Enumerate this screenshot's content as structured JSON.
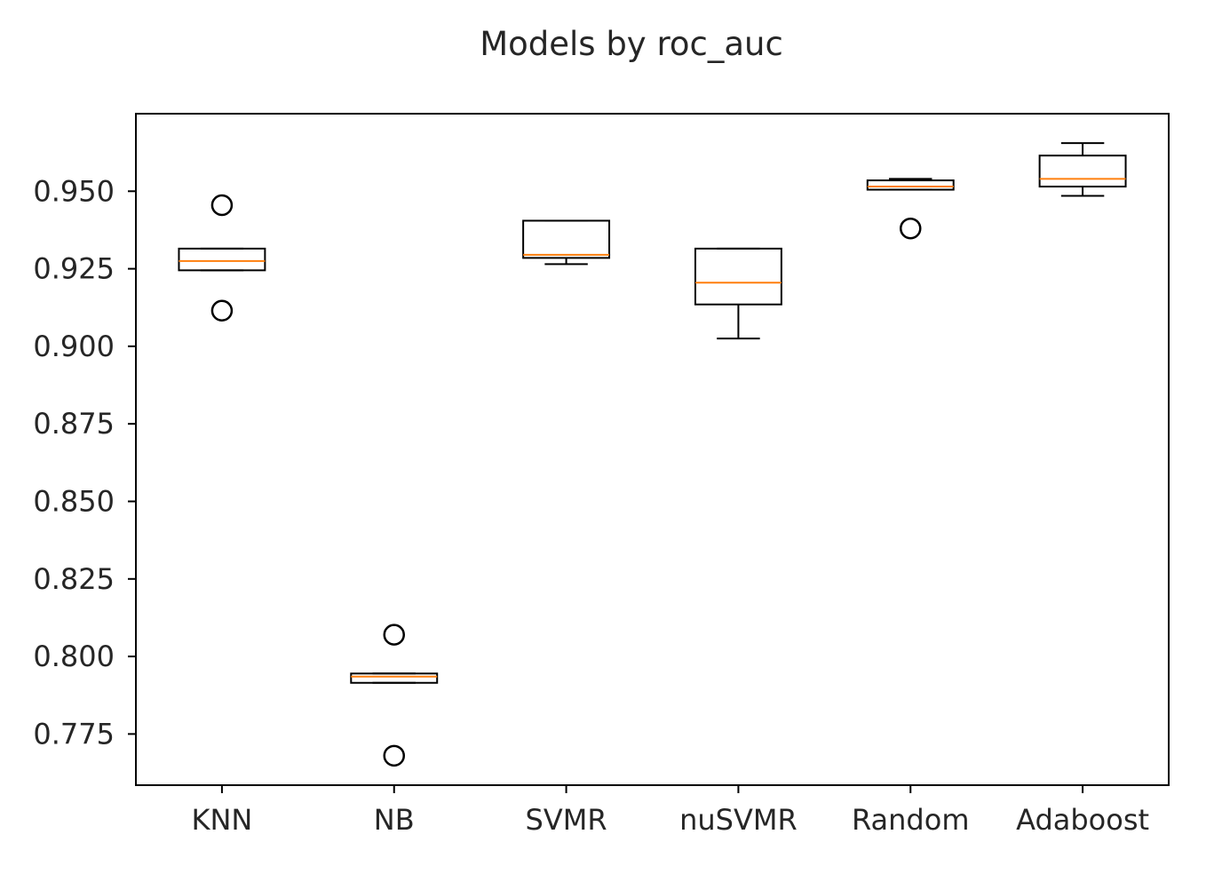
{
  "chart_data": {
    "type": "boxplot",
    "title": "Models by roc_auc",
    "xlabel": "",
    "ylabel": "",
    "ylim": [
      0.7585,
      0.975
    ],
    "yticks": [
      0.775,
      0.8,
      0.825,
      0.85,
      0.875,
      0.9,
      0.925,
      0.95
    ],
    "ytick_labels": [
      "0.775",
      "0.800",
      "0.825",
      "0.850",
      "0.875",
      "0.900",
      "0.925",
      "0.950"
    ],
    "categories": [
      "KNN",
      "NB",
      "SVMR",
      "nuSVMR",
      "Random",
      "Adaboost"
    ],
    "grid": false,
    "colors": {
      "box": "#000000",
      "median": "#ff7f0e",
      "axes": "#000000",
      "text": "#262626"
    },
    "boxes": [
      {
        "label": "KNN",
        "whisker_low": 0.9245,
        "q1": 0.9245,
        "median": 0.9275,
        "q3": 0.9315,
        "whisker_high": 0.9315,
        "outliers": [
          0.9455,
          0.9115
        ]
      },
      {
        "label": "NB",
        "whisker_low": 0.7915,
        "q1": 0.7915,
        "median": 0.7935,
        "q3": 0.7945,
        "whisker_high": 0.7945,
        "outliers": [
          0.807,
          0.768
        ]
      },
      {
        "label": "SVMR",
        "whisker_low": 0.9265,
        "q1": 0.9285,
        "median": 0.9295,
        "q3": 0.9405,
        "whisker_high": 0.9405,
        "outliers": []
      },
      {
        "label": "nuSVMR",
        "whisker_low": 0.9025,
        "q1": 0.9135,
        "median": 0.9205,
        "q3": 0.9315,
        "whisker_high": 0.9315,
        "outliers": []
      },
      {
        "label": "Random",
        "whisker_low": 0.9505,
        "q1": 0.9505,
        "median": 0.9515,
        "q3": 0.9535,
        "whisker_high": 0.954,
        "outliers": [
          0.938
        ]
      },
      {
        "label": "Adaboost",
        "whisker_low": 0.9485,
        "q1": 0.9515,
        "median": 0.954,
        "q3": 0.9615,
        "whisker_high": 0.9655,
        "outliers": []
      }
    ]
  }
}
